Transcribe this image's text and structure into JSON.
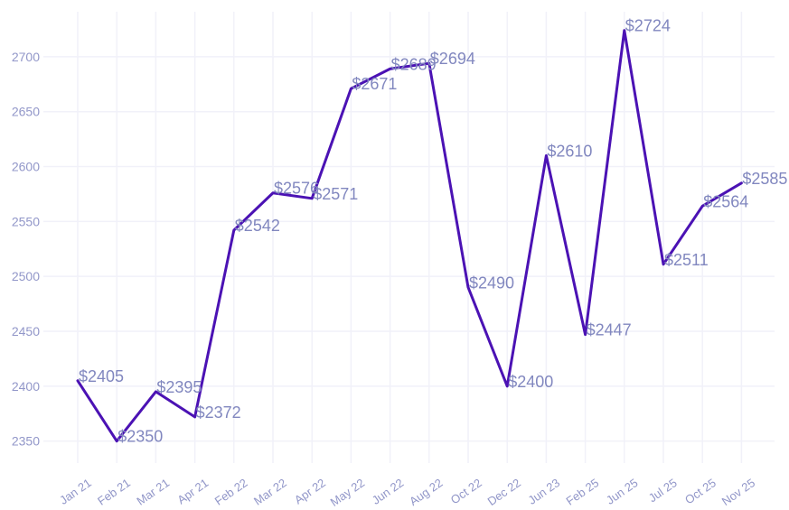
{
  "chart_data": {
    "type": "line",
    "title": "",
    "xlabel": "",
    "ylabel": "",
    "legend": false,
    "grid": true,
    "value_prefix": "$",
    "categories": [
      "Jan 21",
      "Feb 21",
      "Mar 21",
      "Apr 21",
      "Feb 22",
      "Mar 22",
      "Apr 22",
      "May 22",
      "Jun 22",
      "Aug 22",
      "Oct 22",
      "Dec 22",
      "Jun 23",
      "Feb 25",
      "Jun 25",
      "Jul 25",
      "Oct 25",
      "Nov 25"
    ],
    "values": [
      2405,
      2350,
      2395,
      2372,
      2542,
      2576,
      2571,
      2671,
      2689,
      2694,
      2490,
      2400,
      2610,
      2447,
      2724,
      2511,
      2564,
      2585
    ],
    "y_ticks": [
      2350,
      2400,
      2450,
      2500,
      2550,
      2600,
      2650,
      2700
    ],
    "ylim": [
      2330,
      2741
    ],
    "colors": {
      "line": "#4b12b4",
      "data_label": "#8187bf",
      "axis_tick": "#9297c9",
      "gridline": "#f1f1f9",
      "background": "#ffffff"
    }
  }
}
